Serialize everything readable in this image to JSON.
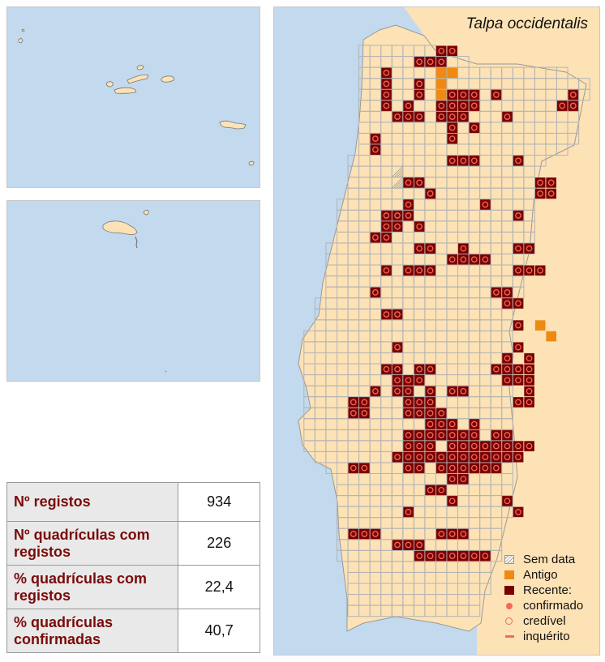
{
  "map": {
    "title": "Talpa occidentalis",
    "legend": {
      "no_date": "Sem data",
      "old": "Antigo",
      "recent": "Recente:",
      "confirmed": "confirmado",
      "credible": "credível",
      "survey": "inquérito"
    },
    "colors": {
      "sea": "#c2d9ee",
      "land": "#fde2b5",
      "grid": "#b4b4b4",
      "old": "#ee8a12",
      "recent": "#7a0000",
      "marker": "#f16b5c"
    },
    "records": {
      "recent_confirmed": [
        [
          "G2",
          0
        ],
        [
          "H2",
          0
        ],
        [
          "D3",
          0
        ],
        [
          "D4",
          0
        ],
        [
          "G4",
          0
        ],
        [
          "D5",
          0
        ],
        [
          "G5",
          0
        ],
        [
          "J5",
          0
        ],
        [
          "K5",
          0
        ],
        [
          "L5",
          0
        ],
        [
          "N5",
          0
        ],
        [
          "U5",
          0
        ],
        [
          "D6",
          0
        ],
        [
          "F6",
          0
        ],
        [
          "I6",
          0
        ],
        [
          "J6",
          0
        ],
        [
          "K6",
          0
        ],
        [
          "L6",
          0
        ],
        [
          "T6",
          0
        ],
        [
          "U6",
          0
        ],
        [
          "E7",
          0
        ],
        [
          "F7",
          0
        ],
        [
          "G7",
          0
        ],
        [
          "I7",
          0
        ],
        [
          "J7",
          0
        ],
        [
          "K7",
          0
        ],
        [
          "J8",
          0
        ],
        [
          "L8",
          0
        ],
        [
          "C9",
          0
        ],
        [
          "C10",
          0
        ],
        [
          "F13",
          0
        ],
        [
          "G13",
          0
        ],
        [
          "H14",
          0
        ],
        [
          "R13",
          0
        ],
        [
          "S13",
          0
        ],
        [
          "R14",
          0
        ],
        [
          "S14",
          0
        ],
        [
          "D16",
          0
        ],
        [
          "E16",
          0
        ],
        [
          "D17",
          0
        ],
        [
          "E17",
          0
        ],
        [
          "G17",
          0
        ],
        [
          "C18",
          0
        ],
        [
          "D18",
          0
        ],
        [
          "K19",
          0
        ],
        [
          "J20",
          0
        ],
        [
          "K20",
          0
        ],
        [
          "L20",
          0
        ],
        [
          "M20",
          0
        ],
        [
          "D21",
          0
        ],
        [
          "Q21",
          0
        ],
        [
          "R21",
          0
        ],
        [
          "C23",
          0
        ],
        [
          "N23",
          0
        ],
        [
          "O23",
          0
        ],
        [
          "O24",
          0
        ],
        [
          "P24",
          0
        ],
        [
          "D25",
          0
        ],
        [
          "E25",
          0
        ],
        [
          "P26",
          0
        ],
        [
          "E28",
          0
        ],
        [
          "P28",
          0
        ],
        [
          "O29",
          0
        ],
        [
          "Q29",
          0
        ],
        [
          "D30",
          0
        ],
        [
          "E30",
          0
        ],
        [
          "G30",
          0
        ],
        [
          "H30",
          0
        ],
        [
          "N30",
          0
        ],
        [
          "O30",
          0
        ],
        [
          "P30",
          0
        ],
        [
          "Q30",
          0
        ],
        [
          "E31",
          0
        ],
        [
          "F31",
          0
        ],
        [
          "G31",
          0
        ],
        [
          "O31",
          0
        ],
        [
          "P31",
          0
        ],
        [
          "Q31",
          0
        ],
        [
          "C32",
          0
        ],
        [
          "E32",
          0
        ],
        [
          "F32",
          0
        ],
        [
          "H32",
          0
        ],
        [
          "J32",
          0
        ],
        [
          "K32",
          0
        ],
        [
          "Q32",
          0
        ],
        [
          "F33",
          0
        ],
        [
          "G33",
          0
        ],
        [
          "H33",
          0
        ],
        [
          "P33",
          0
        ],
        [
          "Q33",
          0
        ],
        [
          "F34",
          0
        ],
        [
          "G34",
          0
        ],
        [
          "H34",
          0
        ],
        [
          "I34",
          0
        ],
        [
          "H35",
          0
        ],
        [
          "I35",
          0
        ],
        [
          "J35",
          0
        ],
        [
          "L35",
          0
        ],
        [
          "F36",
          0
        ],
        [
          "G36",
          0
        ],
        [
          "H36",
          0
        ],
        [
          "I36",
          0
        ],
        [
          "J36",
          0
        ],
        [
          "K36",
          0
        ],
        [
          "L36",
          0
        ],
        [
          "N36",
          0
        ],
        [
          "O36",
          0
        ],
        [
          "F37",
          0
        ],
        [
          "G37",
          0
        ],
        [
          "H37",
          0
        ],
        [
          "J37",
          0
        ],
        [
          "K37",
          0
        ],
        [
          "L37",
          0
        ],
        [
          "M37",
          0
        ],
        [
          "N37",
          0
        ],
        [
          "O37",
          0
        ],
        [
          "P37",
          0
        ],
        [
          "Q37",
          0
        ],
        [
          "J38",
          0
        ],
        [
          "K38",
          0
        ],
        [
          "L38",
          0
        ],
        [
          "M38",
          0
        ],
        [
          "N38",
          0
        ],
        [
          "O38",
          0
        ],
        [
          "P38",
          0
        ],
        [
          "A39",
          0
        ],
        [
          "B39",
          0
        ],
        [
          "F39",
          0
        ],
        [
          "G39",
          0
        ],
        [
          "I39",
          0
        ],
        [
          "J39",
          0
        ],
        [
          "K39",
          0
        ],
        [
          "L39",
          0
        ],
        [
          "M39",
          0
        ],
        [
          "N39",
          0
        ],
        [
          "J40",
          0
        ],
        [
          "K40",
          0
        ],
        [
          "H41",
          0
        ],
        [
          "I41",
          0
        ],
        [
          "A45",
          0
        ],
        [
          "B45",
          0
        ],
        [
          "C45",
          0
        ],
        [
          "G47",
          0
        ],
        [
          "H47",
          0
        ],
        [
          "I47",
          0
        ],
        [
          "J47",
          0
        ],
        [
          "K47",
          0
        ],
        [
          "L47",
          0
        ],
        [
          "M47",
          0
        ]
      ],
      "recent_credible": [
        [
          "I1",
          0
        ],
        [
          "J1",
          0
        ],
        [
          "I2",
          0
        ],
        [
          "O7",
          0
        ],
        [
          "J9",
          0
        ],
        [
          "J11",
          0
        ],
        [
          "K11",
          0
        ],
        [
          "L11",
          0
        ],
        [
          "P11",
          0
        ],
        [
          "F15",
          0
        ],
        [
          "M15",
          0
        ],
        [
          "F16",
          0
        ],
        [
          "P16",
          0
        ],
        [
          "G19",
          0
        ],
        [
          "H19",
          0
        ],
        [
          "P19",
          0
        ],
        [
          "Q19",
          0
        ],
        [
          "F21",
          0
        ],
        [
          "G21",
          0
        ],
        [
          "H21",
          0
        ],
        [
          "P21",
          0
        ],
        [
          "A33",
          0
        ],
        [
          "B33",
          0
        ],
        [
          "A34",
          0
        ],
        [
          "B34",
          0
        ],
        [
          "E38",
          0
        ],
        [
          "F38",
          0
        ],
        [
          "G38",
          0
        ],
        [
          "H38",
          0
        ],
        [
          "I38",
          0
        ],
        [
          "J42",
          0
        ],
        [
          "O42",
          0
        ],
        [
          "F43",
          0
        ],
        [
          "P43",
          0
        ],
        [
          "I45",
          0
        ],
        [
          "J45",
          0
        ],
        [
          "K45",
          0
        ],
        [
          "E46",
          0
        ],
        [
          "F46",
          0
        ],
        [
          "G46",
          0
        ]
      ],
      "old": [
        [
          "I3",
          0
        ],
        [
          "J3",
          0
        ],
        [
          "I4",
          0
        ],
        [
          "I5",
          0
        ],
        [
          "J6",
          0
        ],
        [
          "K6",
          0
        ],
        [
          "R26",
          0
        ],
        [
          "S27",
          0
        ]
      ],
      "no_date": [
        [
          "E12",
          0
        ],
        [
          "E13",
          0
        ]
      ]
    }
  },
  "stats": {
    "rows": [
      {
        "label": "Nº registos",
        "value": "934"
      },
      {
        "label": "Nº quadrículas com registos",
        "value": "226"
      },
      {
        "label": "% quadrículas com registos",
        "value": "22,4"
      },
      {
        "label": "% quadrículas confirmadas",
        "value": "40,7"
      }
    ]
  }
}
